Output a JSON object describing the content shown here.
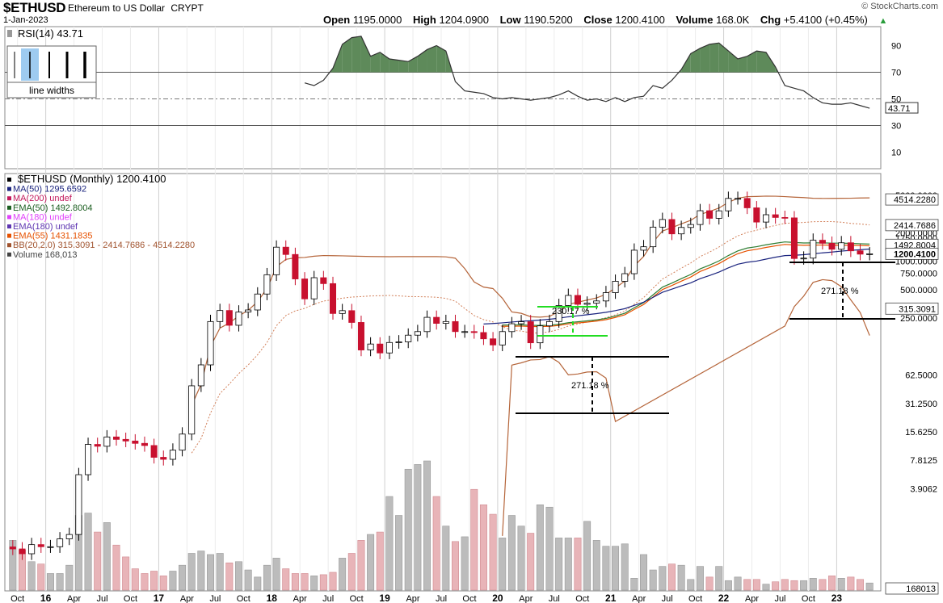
{
  "header": {
    "symbol": "$ETHUSD",
    "description": "Ethereum to US Dollar",
    "exchange": "CRYPT",
    "date": "1-Jan-2023",
    "credit": "© StockCharts.com",
    "open_label": "Open",
    "open": "1195.0000",
    "high_label": "High",
    "high": "1204.0900",
    "low_label": "Low",
    "low": "1190.5200",
    "close_label": "Close",
    "close": "1200.4100",
    "volume_label": "Volume",
    "volume": "168.0K",
    "chg_label": "Chg",
    "chg": "+5.4100 (+0.45%)",
    "chg_arrow": "▲"
  },
  "rsi_panel": {
    "label": "RSI(14) 43.71",
    "line_widths_label": "line widths",
    "current": "43.71",
    "ticks": [
      "90",
      "70",
      "50",
      "30",
      "10"
    ]
  },
  "price_panel": {
    "legend": [
      {
        "text": "$ETHUSD (Monthly) 1200.4100",
        "color": "#000000"
      },
      {
        "text": "MA(50) 1295.6592",
        "color": "#1a237e"
      },
      {
        "text": "MA(200) undef",
        "color": "#c2185b"
      },
      {
        "text": "EMA(50) 1492.8004",
        "color": "#1b5e20"
      },
      {
        "text": "MA(180) undef",
        "color": "#e040fb"
      },
      {
        "text": "EMA(180) undef",
        "color": "#5e35b1"
      },
      {
        "text": "EMA(55) 1431.1835",
        "color": "#e65100"
      },
      {
        "text": "BB(20,2.0) 315.3091 - 2414.7686 - 4514.2280",
        "color": "#a0522d"
      },
      {
        "text": "Volume 168,013",
        "color": "#444444"
      }
    ],
    "right_labels": [
      {
        "text": "4514.2280",
        "boxed": true
      },
      {
        "text": "2414.7686",
        "boxed": true
      },
      {
        "text": "1492.8004",
        "boxed": true
      },
      {
        "text": "1200.4100",
        "boxed": true,
        "bold": true
      },
      {
        "text": "315.3091",
        "boxed": true
      },
      {
        "text": "168013",
        "boxed": true
      }
    ],
    "axis_ticks": [
      "5000.0000",
      "2000.0000",
      "1750.0000",
      "1250.0000",
      "1000.0000",
      "750.0000",
      "500.0000",
      "250.0000",
      "62.5000",
      "31.2500",
      "15.6250",
      "7.8125",
      "3.9062"
    ],
    "annotations": {
      "measure_2020": "230.17 %",
      "measure_low": "271.18 %",
      "measure_right": "271.18 %"
    }
  },
  "chart_data": {
    "type": "candlestick",
    "title": "$ETHUSD Ethereum to US Dollar CRYPT",
    "x_ticks": [
      "Oct",
      "16",
      "Apr",
      "Jul",
      "Oct",
      "17",
      "Apr",
      "Jul",
      "Oct",
      "18",
      "Apr",
      "Jul",
      "Oct",
      "19",
      "Apr",
      "Jul",
      "Oct",
      "20",
      "Apr",
      "Jul",
      "Oct",
      "21",
      "Apr",
      "Jul",
      "Oct",
      "22",
      "Apr",
      "Jul",
      "Oct",
      "23"
    ],
    "y_scale": "log",
    "close_series": [
      0.9,
      0.8,
      1.0,
      0.95,
      0.95,
      1.15,
      1.28,
      5.5,
      11.5,
      11.0,
      13.8,
      13.0,
      12.5,
      11.8,
      11.2,
      8.4,
      8.0,
      10.0,
      14.8,
      48,
      80,
      230,
      301,
      210,
      290,
      305,
      450,
      720,
      1410,
      1180,
      650,
      400,
      670,
      580,
      280,
      300,
      225,
      115,
      133,
      107,
      138,
      140,
      165,
      180,
      255,
      220,
      230,
      180,
      180,
      176,
      151,
      130,
      180,
      218,
      229,
      137,
      207,
      230,
      340,
      435,
      350,
      360,
      380,
      465,
      614,
      739,
      1310,
      1425,
      2300,
      2770,
      1950,
      2280,
      2450,
      3430,
      2850,
      3420,
      4630,
      4630,
      3680,
      2600,
      3110,
      2910,
      2880,
      1070,
      1080,
      1670,
      1550,
      1340,
      1570,
      1290,
      1190,
      1200
    ],
    "volume_series": [
      4.2,
      3.4,
      2.4,
      2.2,
      1.4,
      1.4,
      2.1,
      6.3,
      6.5,
      4.9,
      5.7,
      3.8,
      2.8,
      1.8,
      1.4,
      1.6,
      1.2,
      1.6,
      2.1,
      3.1,
      3.3,
      3.0,
      3.1,
      2.3,
      2.4,
      1.7,
      1.1,
      2.1,
      2.7,
      1.8,
      1.4,
      1.4,
      1.2,
      1.3,
      1.5,
      2.7,
      3.1,
      4.2,
      4.7,
      4.9,
      7.9,
      6.3,
      10.2,
      10.6,
      10.9,
      7.9,
      5.4,
      4.1,
      4.5,
      8.5,
      7.2,
      6.4,
      4.4,
      6.3,
      5.4,
      4.8,
      7.2,
      7.0,
      4.4,
      4.4,
      4.4,
      5.8,
      4.2,
      3.7,
      3.7,
      3.9,
      1.0,
      3.0,
      1.7,
      2.0,
      2.2,
      2.1,
      0.9,
      2.0,
      1.1,
      2.0,
      0.8,
      1.1,
      0.9,
      0.9,
      0.5,
      0.7,
      0.9,
      0.8,
      0.8,
      1.0,
      0.9,
      1.2,
      1.0,
      1.1,
      0.9,
      0.6
    ],
    "rsi_series": [
      62,
      60,
      64,
      73,
      91,
      96,
      97,
      82,
      85,
      80,
      79,
      78,
      82,
      87,
      90,
      86,
      63,
      56,
      55,
      54,
      51,
      50,
      51,
      50,
      49,
      50,
      51,
      53,
      56,
      52,
      49,
      50,
      48,
      51,
      48,
      51,
      52,
      60,
      58,
      64,
      72,
      84,
      88,
      91,
      92,
      86,
      80,
      82,
      86,
      85,
      74,
      60,
      58,
      56,
      51,
      47,
      46,
      46,
      47,
      45,
      43
    ],
    "rsi_ylim": [
      0,
      100
    ],
    "rsi_levels": [
      70,
      50,
      30
    ]
  }
}
